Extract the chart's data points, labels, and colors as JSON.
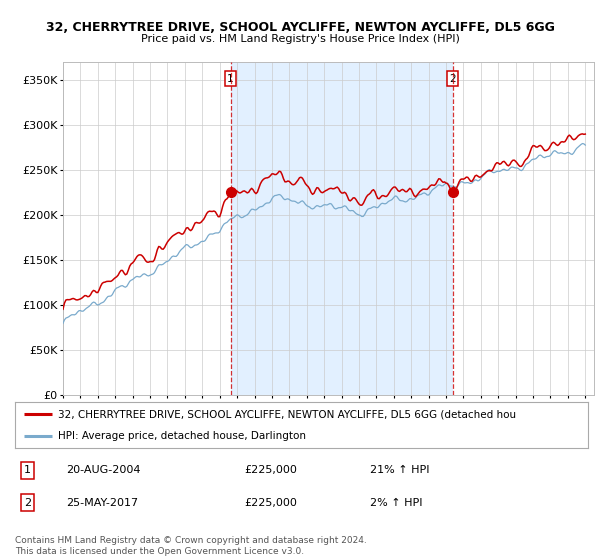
{
  "title1": "32, CHERRYTREE DRIVE, SCHOOL AYCLIFFE, NEWTON AYCLIFFE, DL5 6GG",
  "title2": "Price paid vs. HM Land Registry's House Price Index (HPI)",
  "ylim": [
    0,
    370000
  ],
  "yticks": [
    0,
    50000,
    100000,
    150000,
    200000,
    250000,
    300000,
    350000
  ],
  "ytick_labels": [
    "£0",
    "£50K",
    "£100K",
    "£150K",
    "£200K",
    "£250K",
    "£300K",
    "£350K"
  ],
  "sale1_year": 2004.625,
  "sale1_price": 225000,
  "sale2_year": 2017.375,
  "sale2_price": 225000,
  "legend_red": "32, CHERRYTREE DRIVE, SCHOOL AYCLIFFE, NEWTON AYCLIFFE, DL5 6GG (detached hou",
  "legend_blue": "HPI: Average price, detached house, Darlington",
  "table_row1": [
    "1",
    "20-AUG-2004",
    "£225,000",
    "21% ↑ HPI"
  ],
  "table_row2": [
    "2",
    "25-MAY-2017",
    "£225,000",
    "2% ↑ HPI"
  ],
  "footer": "Contains HM Land Registry data © Crown copyright and database right 2024.\nThis data is licensed under the Open Government Licence v3.0.",
  "red_color": "#cc0000",
  "blue_color": "#7aaacc",
  "shade_color": "#ddeeff",
  "grid_color": "#cccccc",
  "background": "#ffffff",
  "xlim_left": 1995,
  "xlim_right": 2025.5
}
